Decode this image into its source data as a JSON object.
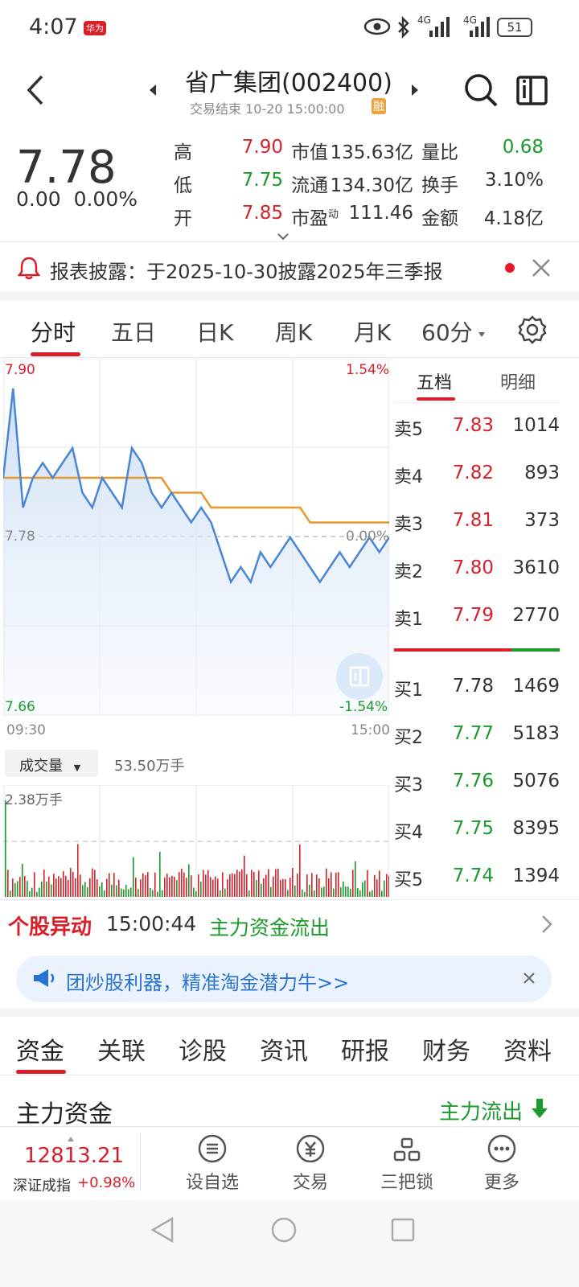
{
  "status_bar": {
    "time": "4:07",
    "badge": "华为",
    "net1": "4G",
    "net2": "4G",
    "battery": "51"
  },
  "header": {
    "title": "省广集团(002400)",
    "subtitle": "交易结束 10-20 15:00:00",
    "badge": "融"
  },
  "quote": {
    "price": "7.78",
    "change": "0.00",
    "change_pct": "0.00%",
    "rows": [
      {
        "l1": "高",
        "v1": "7.90",
        "l2": "市值",
        "v2": "135.63亿",
        "l3": "量比",
        "v3": "0.68"
      },
      {
        "l1": "低",
        "v1": "7.75",
        "l2": "流通",
        "v2": "134.30亿",
        "l3": "换手",
        "v3": "3.10%"
      },
      {
        "l1": "开",
        "v1": "7.85",
        "l2": "市盈",
        "l2_sup": "动",
        "v2": "111.46",
        "l3": "金额",
        "v3": "4.18亿"
      }
    ]
  },
  "notice": {
    "text": "报表披露：于2025-10-30披露2025年三季报"
  },
  "tabs": [
    "分时",
    "五日",
    "日K",
    "周K",
    "月K",
    "60分"
  ],
  "chart": {
    "y_top": "7.90",
    "y_mid": "7.78",
    "y_bot": "7.66",
    "pct_top": "1.54%",
    "pct_mid": "0.00%",
    "pct_bot": "-1.54%",
    "time_start": "09:30",
    "time_end": "15:00",
    "vol_selector": "成交量",
    "vol_total": "53.50万手",
    "vol_max": "2.38万手",
    "colors": {
      "price": "#4a86d6",
      "avg": "#e8962e",
      "up": "#d8202a",
      "down": "#1c9a2c"
    }
  },
  "chart_data": {
    "type": "line",
    "ylim": [
      7.66,
      7.9
    ],
    "series": [
      {
        "values": [
          7.82,
          7.88,
          7.8,
          7.82,
          7.83,
          7.82,
          7.83,
          7.84,
          7.81,
          7.8,
          7.82,
          7.81,
          7.8,
          7.84,
          7.83,
          7.81,
          7.8,
          7.81,
          7.8,
          7.79,
          7.8,
          7.79,
          7.77,
          7.75,
          7.76,
          7.75,
          7.77,
          7.76,
          7.77,
          7.78,
          7.77,
          7.76,
          7.75,
          7.76,
          7.77,
          7.76,
          7.77,
          7.78,
          7.77,
          7.78
        ]
      },
      {
        "values": [
          7.82,
          7.82,
          7.82,
          7.82,
          7.82,
          7.82,
          7.82,
          7.82,
          7.82,
          7.82,
          7.82,
          7.82,
          7.82,
          7.82,
          7.82,
          7.82,
          7.82,
          7.81,
          7.81,
          7.81,
          7.81,
          7.8,
          7.8,
          7.8,
          7.8,
          7.8,
          7.8,
          7.8,
          7.8,
          7.8,
          7.8,
          7.79,
          7.79,
          7.79,
          7.79,
          7.79,
          7.79,
          7.79,
          7.79,
          7.79
        ]
      }
    ]
  },
  "order_book": {
    "tabs": [
      "五档",
      "明细"
    ],
    "sell": [
      {
        "label": "卖5",
        "price": "7.83",
        "vol": "1014"
      },
      {
        "label": "卖4",
        "price": "7.82",
        "vol": "893"
      },
      {
        "label": "卖3",
        "price": "7.81",
        "vol": "373"
      },
      {
        "label": "卖2",
        "price": "7.80",
        "vol": "3610"
      },
      {
        "label": "卖1",
        "price": "7.79",
        "vol": "2770"
      }
    ],
    "buy": [
      {
        "label": "买1",
        "price": "7.78",
        "vol": "1469"
      },
      {
        "label": "买2",
        "price": "7.77",
        "vol": "5183"
      },
      {
        "label": "买3",
        "price": "7.76",
        "vol": "5076"
      },
      {
        "label": "买4",
        "price": "7.75",
        "vol": "8395"
      },
      {
        "label": "买5",
        "price": "7.74",
        "vol": "1394"
      }
    ]
  },
  "alert": {
    "title": "个股异动",
    "time": "15:00:44",
    "msg": "主力资金流出"
  },
  "promo": {
    "text": "团炒股利器，精准淘金潜力牛>>"
  },
  "subtabs": [
    "资金",
    "关联",
    "诊股",
    "资讯",
    "研报",
    "财务",
    "资料"
  ],
  "section": {
    "title": "主力资金",
    "flow": "主力流出"
  },
  "bottom_nav": {
    "index_value": "12813.21",
    "index_name": "深证成指",
    "index_change": "+0.98%",
    "items": [
      "设自选",
      "交易",
      "三把锁",
      "更多"
    ]
  }
}
